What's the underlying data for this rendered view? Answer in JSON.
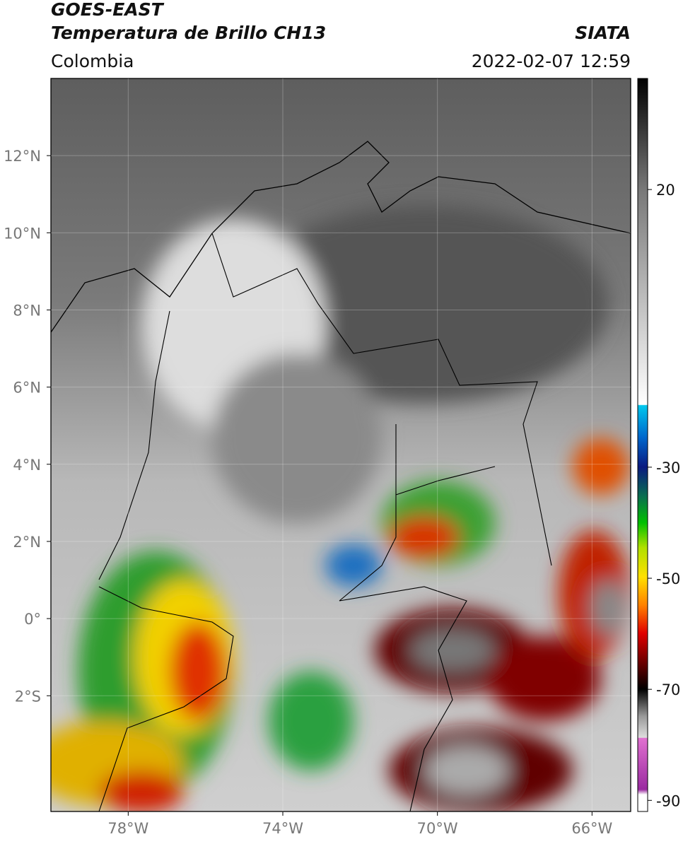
{
  "header": {
    "satellite": "GOES-EAST",
    "product": "Temperatura de Brillo CH13",
    "source": "SIATA",
    "region": "Colombia",
    "datetime": "2022-02-07 12:59"
  },
  "map": {
    "lon_range": [
      -80,
      -65
    ],
    "lat_range": [
      14,
      -5
    ],
    "lon_ticks": [
      {
        "value": -78,
        "label": "78°W"
      },
      {
        "value": -74,
        "label": "74°W"
      },
      {
        "value": -70,
        "label": "70°W"
      },
      {
        "value": -66,
        "label": "66°W"
      }
    ],
    "lat_ticks": [
      {
        "value": 12,
        "label": "12°N"
      },
      {
        "value": 10,
        "label": "10°N"
      },
      {
        "value": 8,
        "label": "8°N"
      },
      {
        "value": 6,
        "label": "6°N"
      },
      {
        "value": 4,
        "label": "4°N"
      },
      {
        "value": 2,
        "label": "2°N"
      },
      {
        "value": 0,
        "label": "0°"
      },
      {
        "value": -2,
        "label": "2°S"
      }
    ]
  },
  "colorbar": {
    "range": [
      40,
      -92
    ],
    "ticks": [
      20,
      -30,
      -50,
      -70,
      -90
    ]
  }
}
